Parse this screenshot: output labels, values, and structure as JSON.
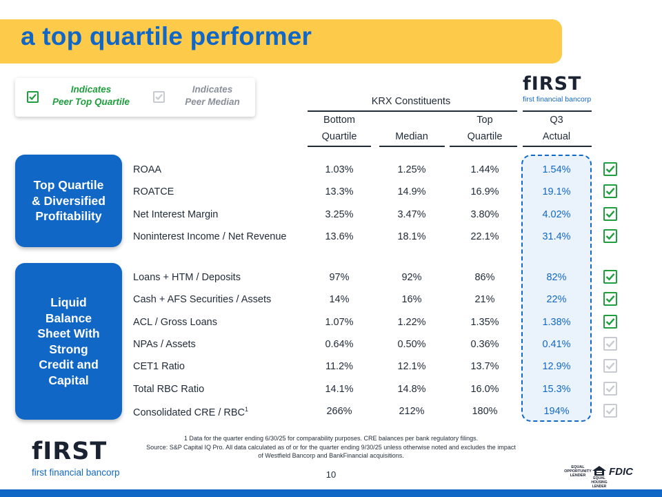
{
  "title": "a top quartile performer",
  "legend": {
    "top_quartile_label": "Indicates\nPeer Top Quartile",
    "median_label": "Indicates\nPeer Median"
  },
  "logo": {
    "word": "fIRST",
    "sub": "first financial bancorp"
  },
  "colors": {
    "brand_blue": "#1167c5",
    "title_yellow": "#fdca4a",
    "check_green": "#1e9e3c",
    "check_gray": "#c7cbd0"
  },
  "header": {
    "krx_label": "KRX Constituents",
    "bottom_quartile_line1": "Bottom",
    "bottom_quartile_line2": "Quartile",
    "median": "Median",
    "top_quartile_line1": "Top",
    "top_quartile_line2": "Quartile",
    "q3_line1": "Q3",
    "q3_line2": "Actual"
  },
  "groups": {
    "profitability": "Top Quartile\n& Diversified\nProfitability",
    "balance_sheet": "Liquid\nBalance\nSheet With\nStrong\nCredit and\nCapital"
  },
  "rows": [
    {
      "label": "ROAA",
      "bottom": "1.03%",
      "median": "1.25%",
      "top": "1.44%",
      "q3": "1.54%",
      "indicator": "top"
    },
    {
      "label": "ROATCE",
      "bottom": "13.3%",
      "median": "14.9%",
      "top": "16.9%",
      "q3": "19.1%",
      "indicator": "top"
    },
    {
      "label": "Net Interest Margin",
      "bottom": "3.25%",
      "median": "3.47%",
      "top": "3.80%",
      "q3": "4.02%",
      "indicator": "top"
    },
    {
      "label": "Noninterest Income / Net Revenue",
      "bottom": "13.6%",
      "median": "18.1%",
      "top": "22.1%",
      "q3": "31.4%",
      "indicator": "top"
    },
    {
      "label": "Loans + HTM / Deposits",
      "bottom": "97%",
      "median": "92%",
      "top": "86%",
      "q3": "82%",
      "indicator": "top"
    },
    {
      "label": "Cash + AFS Securities / Assets",
      "bottom": "14%",
      "median": "16%",
      "top": "21%",
      "q3": "22%",
      "indicator": "top"
    },
    {
      "label": "ACL / Gross Loans",
      "bottom": "1.07%",
      "median": "1.22%",
      "top": "1.35%",
      "q3": "1.38%",
      "indicator": "top"
    },
    {
      "label": "NPAs / Assets",
      "bottom": "0.64%",
      "median": "0.50%",
      "top": "0.36%",
      "q3": "0.41%",
      "indicator": "median"
    },
    {
      "label": "CET1 Ratio",
      "bottom": "11.2%",
      "median": "12.1%",
      "top": "13.7%",
      "q3": "12.9%",
      "indicator": "median"
    },
    {
      "label": "Total RBC Ratio",
      "bottom": "14.1%",
      "median": "14.8%",
      "top": "16.0%",
      "q3": "15.3%",
      "indicator": "median"
    },
    {
      "label": "Consolidated CRE / RBC",
      "label_sup": "1",
      "bottom": "266%",
      "median": "212%",
      "top": "180%",
      "q3": "194%",
      "indicator": "median"
    }
  ],
  "footnote": {
    "line1": "1        Data for the quarter ending 6/30/25 for comparability purposes. CRE balances per bank regulatory filings.",
    "line2": "Source: S&P Capital IQ Pro. All data calculated as of or for the quarter ending 9/30/25 unless otherwise noted and excludes the impact of Westfield Bancorp and BankFinancial acquisitions."
  },
  "page_number": "10",
  "badges": {
    "equal_opportunity": "EQUAL\nOPPORTUNITY\nLENDER",
    "equal_housing": "EQUAL HOUSING\nLENDER",
    "fdic": "FDIC"
  }
}
